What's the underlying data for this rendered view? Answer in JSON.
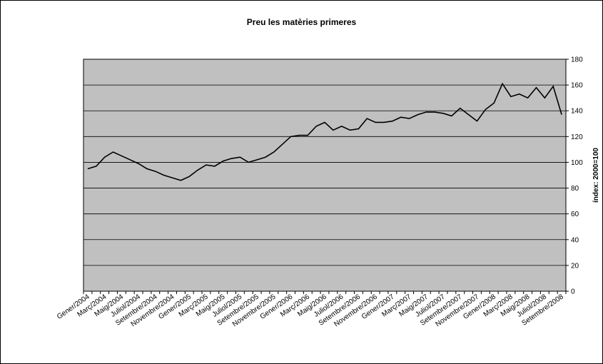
{
  "chart_data": {
    "type": "line",
    "title": "Preu les matèries primeres",
    "xlabel": "",
    "ylabel": "índex: 2000=100",
    "ylim": [
      0,
      180
    ],
    "yticks": [
      0,
      20,
      40,
      60,
      80,
      100,
      120,
      140,
      160,
      180
    ],
    "y_axis_side": "right",
    "grid": true,
    "legend": "none",
    "plot_background": "#c0c0c0",
    "line_color": "#000000",
    "x_tick_labels": [
      "Gener/2004",
      "Març/2004",
      "Maig/2004",
      "Juliol/2004",
      "Setembre/2004",
      "Novembre/2004",
      "Gener/2005",
      "Març/2005",
      "Maig/2005",
      "Juliol/2005",
      "Setembre/2005",
      "Novembre/2005",
      "Gener/2006",
      "Març/2006",
      "Maig/2006",
      "Juliol/2006",
      "Setembre/2006",
      "Novembre/2006",
      "Gener/2007",
      "Març/2007",
      "Maig/2007",
      "Juliol/2007",
      "Setembre/2007",
      "Novembre/2007",
      "Gener/2008",
      "Març/2008",
      "Maig/2008",
      "Juliol/2008",
      "Setembre/2008"
    ],
    "x": [
      "01/2004",
      "02/2004",
      "03/2004",
      "04/2004",
      "05/2004",
      "06/2004",
      "07/2004",
      "08/2004",
      "09/2004",
      "10/2004",
      "11/2004",
      "12/2004",
      "01/2005",
      "02/2005",
      "03/2005",
      "04/2005",
      "05/2005",
      "06/2005",
      "07/2005",
      "08/2005",
      "09/2005",
      "10/2005",
      "11/2005",
      "12/2005",
      "01/2006",
      "02/2006",
      "03/2006",
      "04/2006",
      "05/2006",
      "06/2006",
      "07/2006",
      "08/2006",
      "09/2006",
      "10/2006",
      "11/2006",
      "12/2006",
      "01/2007",
      "02/2007",
      "03/2007",
      "04/2007",
      "05/2007",
      "06/2007",
      "07/2007",
      "08/2007",
      "09/2007",
      "10/2007",
      "11/2007",
      "12/2007",
      "01/2008",
      "02/2008",
      "03/2008",
      "04/2008",
      "05/2008",
      "06/2008",
      "07/2008",
      "08/2008",
      "09/2008"
    ],
    "values": [
      95,
      97,
      104,
      108,
      105,
      102,
      99,
      95,
      93,
      90,
      88,
      86,
      89,
      94,
      98,
      97,
      101,
      103,
      104,
      100,
      102,
      104,
      108,
      114,
      120,
      121,
      121,
      128,
      131,
      125,
      128,
      125,
      126,
      134,
      131,
      131,
      132,
      135,
      134,
      137,
      139,
      139,
      138,
      136,
      142,
      137,
      132,
      141,
      146,
      161,
      151,
      153,
      150,
      158,
      150,
      159,
      137
    ]
  }
}
